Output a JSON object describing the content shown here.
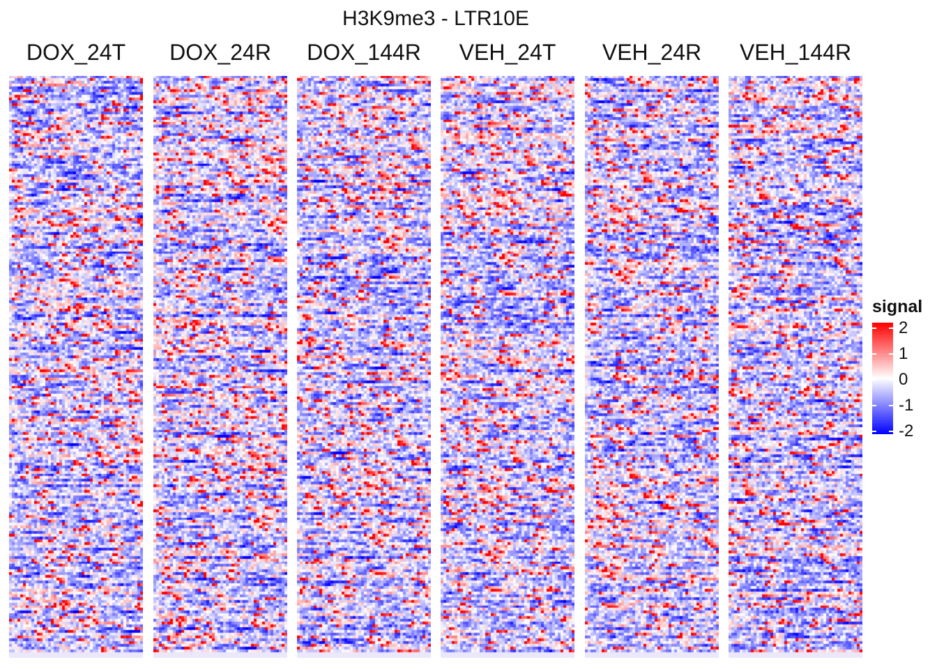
{
  "chart_data": {
    "type": "heatmap",
    "title": "H3K9me3 - LTR10E",
    "panels": [
      "DOX_24T",
      "DOX_24R",
      "DOX_144R",
      "VEH_24T",
      "VEH_24R",
      "VEH_144R"
    ],
    "colorscale": {
      "label": "signal",
      "min": -2,
      "max": 2,
      "low_color": "#0000ff",
      "mid_color": "#ffffff",
      "high_color": "#ff0000",
      "ticks": [
        "2",
        "1",
        "0",
        "-1",
        "-2"
      ]
    }
  }
}
